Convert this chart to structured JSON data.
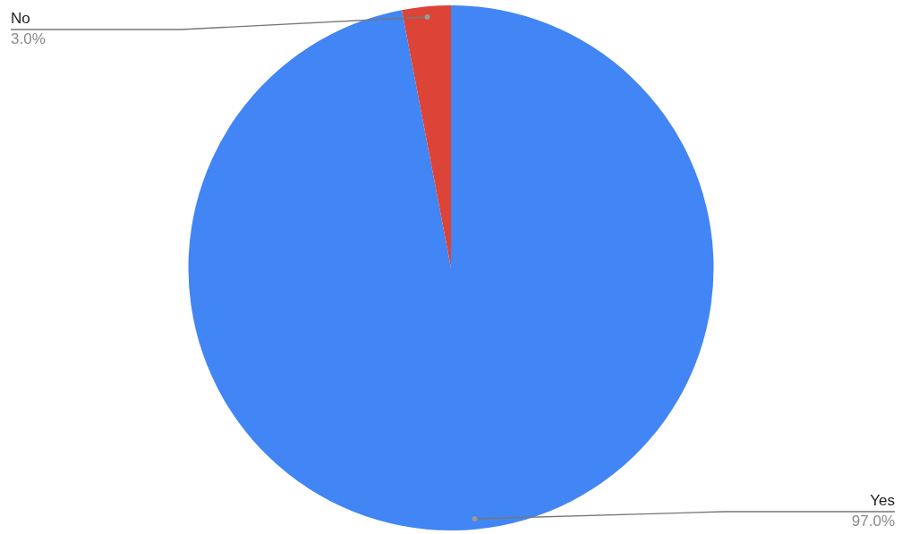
{
  "chart_data": {
    "type": "pie",
    "categories": [
      "Yes",
      "No"
    ],
    "values": [
      97.0,
      3.0
    ],
    "colors": [
      "#4285f4",
      "#db4437"
    ],
    "value_labels": [
      "97.0%",
      "3.0%"
    ],
    "legend": false
  }
}
